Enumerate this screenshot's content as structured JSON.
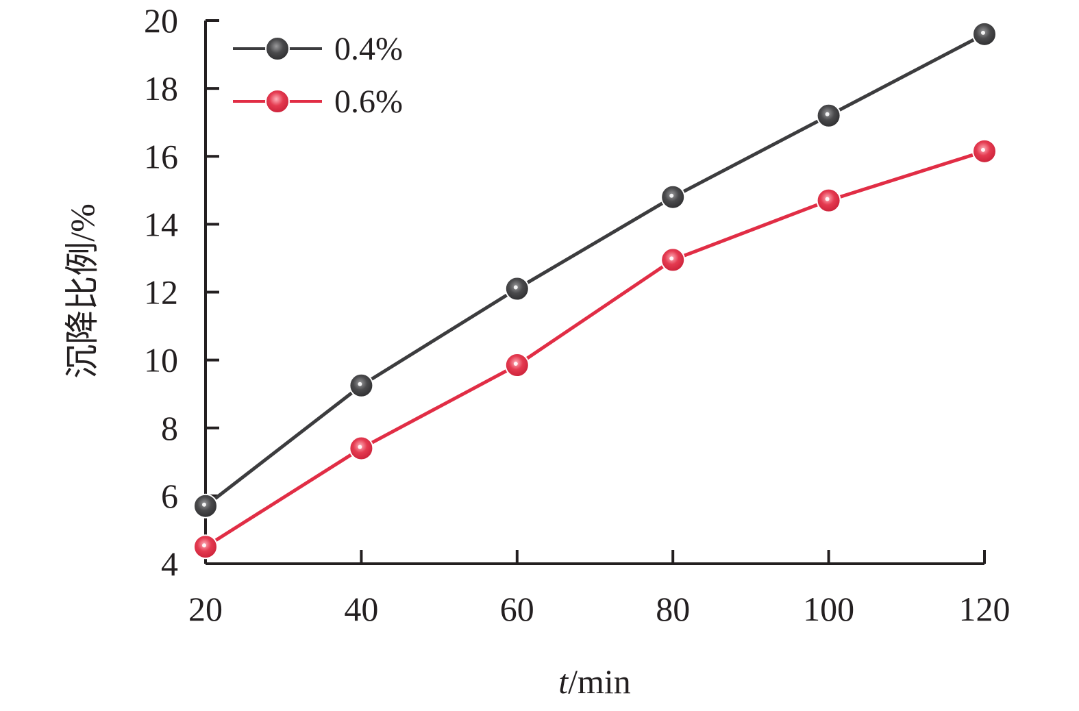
{
  "chart_data": {
    "type": "line",
    "x": [
      20,
      40,
      60,
      80,
      100,
      120
    ],
    "series": [
      {
        "name": "0.4%",
        "values": [
          5.7,
          9.25,
          12.1,
          14.8,
          17.2,
          19.6
        ],
        "color": "#3c3c3e"
      },
      {
        "name": "0.6%",
        "values": [
          4.5,
          7.4,
          9.85,
          12.95,
          14.7,
          16.15
        ],
        "color": "#e12d45"
      }
    ],
    "xlim": [
      20,
      120
    ],
    "ylim": [
      4,
      20
    ],
    "xticks": [
      "20",
      "40",
      "60",
      "80",
      "100",
      "120"
    ],
    "yticks": [
      "4",
      "6",
      "8",
      "10",
      "12",
      "14",
      "16",
      "18",
      "20"
    ],
    "xlabel_italic": "t",
    "xlabel_rest": "/min",
    "ylabel": "沉降比例/%",
    "legend_position": "top-left",
    "grid": false
  }
}
